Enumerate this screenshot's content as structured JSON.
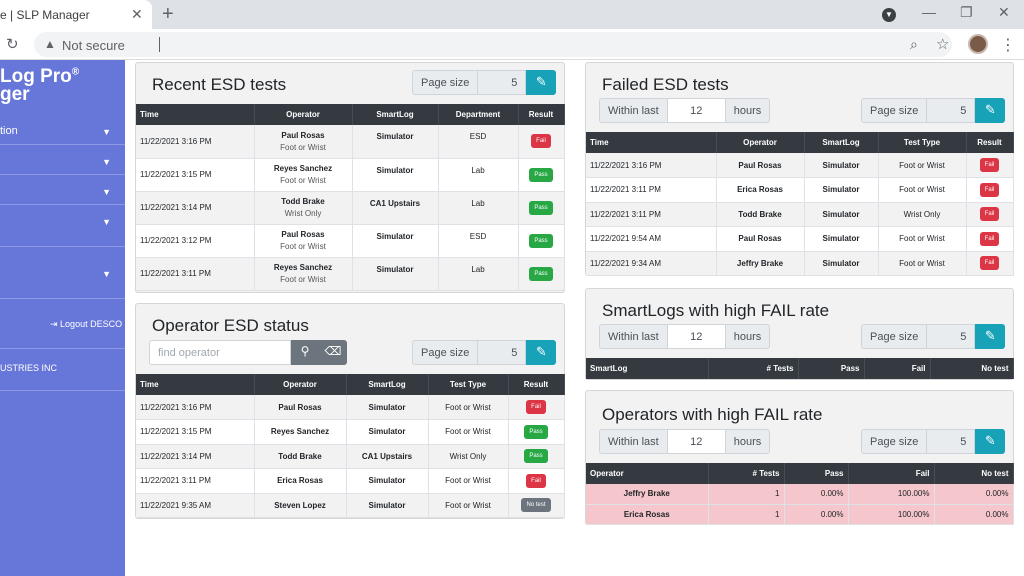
{
  "browser": {
    "tab_title": "e | SLP Manager",
    "tab_close": "✕",
    "new_tab": "+",
    "address_security": "Not secure",
    "minimize": "—",
    "restore": "❐",
    "close": "✕"
  },
  "sidebar": {
    "brand_line1": "Log Pro",
    "brand_reg": "®",
    "brand_line2": "ger",
    "item_label": "tion",
    "logout": "Logout DESCO",
    "company": "USTRIES INC",
    "color": "#6777d9"
  },
  "recent": {
    "title": "Recent ESD tests",
    "page_size_label": "Page size",
    "page_size": "5",
    "headers": [
      "Time",
      "Operator",
      "SmartLog",
      "Department",
      "Result"
    ],
    "rows": [
      {
        "time": "11/22/2021 3:16 PM",
        "operator": "Paul Rosas",
        "test": "Foot or Wrist",
        "smartlog": "Simulator",
        "dept": "ESD",
        "result": "Fail"
      },
      {
        "time": "11/22/2021 3:15 PM",
        "operator": "Reyes Sanchez",
        "test": "Foot or Wrist",
        "smartlog": "Simulator",
        "dept": "Lab",
        "result": "Pass"
      },
      {
        "time": "11/22/2021 3:14 PM",
        "operator": "Todd Brake",
        "test": "Wrist Only",
        "smartlog": "CA1 Upstairs",
        "dept": "Lab",
        "result": "Pass"
      },
      {
        "time": "11/22/2021 3:12 PM",
        "operator": "Paul Rosas",
        "test": "Foot or Wrist",
        "smartlog": "Simulator",
        "dept": "ESD",
        "result": "Pass"
      },
      {
        "time": "11/22/2021 3:11 PM",
        "operator": "Reyes Sanchez",
        "test": "Foot or Wrist",
        "smartlog": "Simulator",
        "dept": "Lab",
        "result": "Pass"
      }
    ]
  },
  "operator": {
    "title": "Operator ESD status",
    "search_placeholder": "find operator",
    "page_size_label": "Page size",
    "page_size": "5",
    "headers": [
      "Time",
      "Operator",
      "SmartLog",
      "Test Type",
      "Result"
    ],
    "rows": [
      {
        "time": "11/22/2021 3:16 PM",
        "operator": "Paul Rosas",
        "smartlog": "Simulator",
        "type": "Foot or Wrist",
        "result": "Fail"
      },
      {
        "time": "11/22/2021 3:15 PM",
        "operator": "Reyes Sanchez",
        "smartlog": "Simulator",
        "type": "Foot or Wrist",
        "result": "Pass"
      },
      {
        "time": "11/22/2021 3:14 PM",
        "operator": "Todd Brake",
        "smartlog": "CA1 Upstairs",
        "type": "Wrist Only",
        "result": "Pass"
      },
      {
        "time": "11/22/2021 3:11 PM",
        "operator": "Erica Rosas",
        "smartlog": "Simulator",
        "type": "Foot or Wrist",
        "result": "Fail"
      },
      {
        "time": "11/22/2021 9:35 AM",
        "operator": "Steven Lopez",
        "smartlog": "Simulator",
        "type": "Foot or Wrist",
        "result": "No test"
      }
    ]
  },
  "failed": {
    "title": "Failed ESD tests",
    "within_label": "Within last",
    "within_value": "12",
    "within_unit": "hours",
    "page_size_label": "Page size",
    "page_size": "5",
    "headers": [
      "Time",
      "Operator",
      "SmartLog",
      "Test Type",
      "Result"
    ],
    "rows": [
      {
        "time": "11/22/2021 3:16 PM",
        "operator": "Paul Rosas",
        "smartlog": "Simulator",
        "type": "Foot or Wrist",
        "result": "Fail"
      },
      {
        "time": "11/22/2021 3:11 PM",
        "operator": "Erica Rosas",
        "smartlog": "Simulator",
        "type": "Foot or Wrist",
        "result": "Fail"
      },
      {
        "time": "11/22/2021 3:11 PM",
        "operator": "Todd Brake",
        "smartlog": "Simulator",
        "type": "Wrist Only",
        "result": "Fail"
      },
      {
        "time": "11/22/2021 9:54 AM",
        "operator": "Paul Rosas",
        "smartlog": "Simulator",
        "type": "Foot or Wrist",
        "result": "Fail"
      },
      {
        "time": "11/22/2021 9:34 AM",
        "operator": "Jeffry Brake",
        "smartlog": "Simulator",
        "type": "Foot or Wrist",
        "result": "Fail"
      }
    ]
  },
  "smartlogs": {
    "title": "SmartLogs with high FAIL rate",
    "within_label": "Within last",
    "within_value": "12",
    "within_unit": "hours",
    "page_size_label": "Page size",
    "page_size": "5",
    "headers": [
      "SmartLog",
      "# Tests",
      "Pass",
      "Fail",
      "No test"
    ]
  },
  "operators_fail": {
    "title": "Operators with high FAIL rate",
    "within_label": "Within last",
    "within_value": "12",
    "within_unit": "hours",
    "page_size_label": "Page size",
    "page_size": "5",
    "headers": [
      "Operator",
      "# Tests",
      "Pass",
      "Fail",
      "No test"
    ],
    "rows": [
      {
        "operator": "Jeffry Brake",
        "tests": "1",
        "pass": "0.00%",
        "fail": "100.00%",
        "notest": "0.00%"
      },
      {
        "operator": "Erica Rosas",
        "tests": "1",
        "pass": "0.00%",
        "fail": "100.00%",
        "notest": "0.00%"
      }
    ]
  }
}
